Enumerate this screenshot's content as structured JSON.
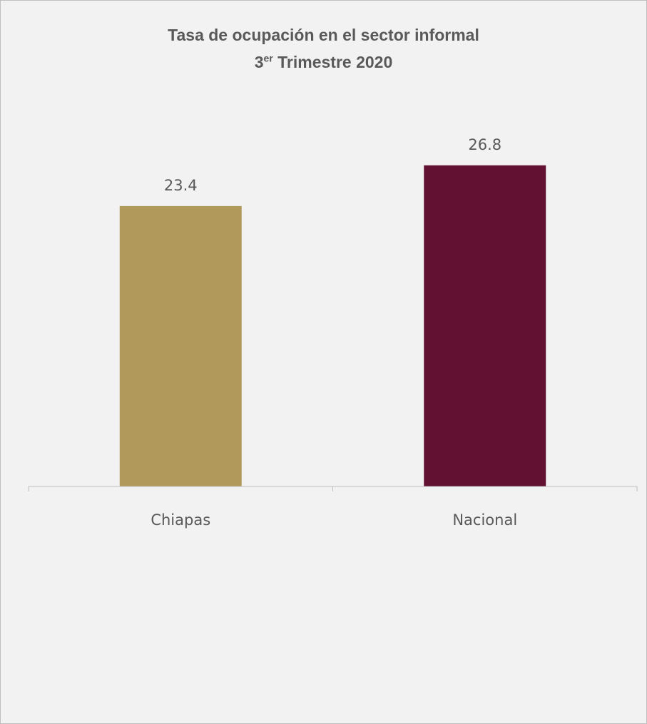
{
  "chart_data": {
    "type": "bar",
    "title": "Tasa de ocupación en el sector informal",
    "subtitle": {
      "number": "3",
      "suffix": "er",
      "rest": " Trimestre 2020"
    },
    "categories": [
      "Chiapas",
      "Nacional"
    ],
    "values": [
      23.4,
      26.8
    ],
    "colors": [
      "#b0995b",
      "#621132"
    ],
    "ylim": [
      0,
      30
    ],
    "grid": false,
    "legend": "none"
  }
}
